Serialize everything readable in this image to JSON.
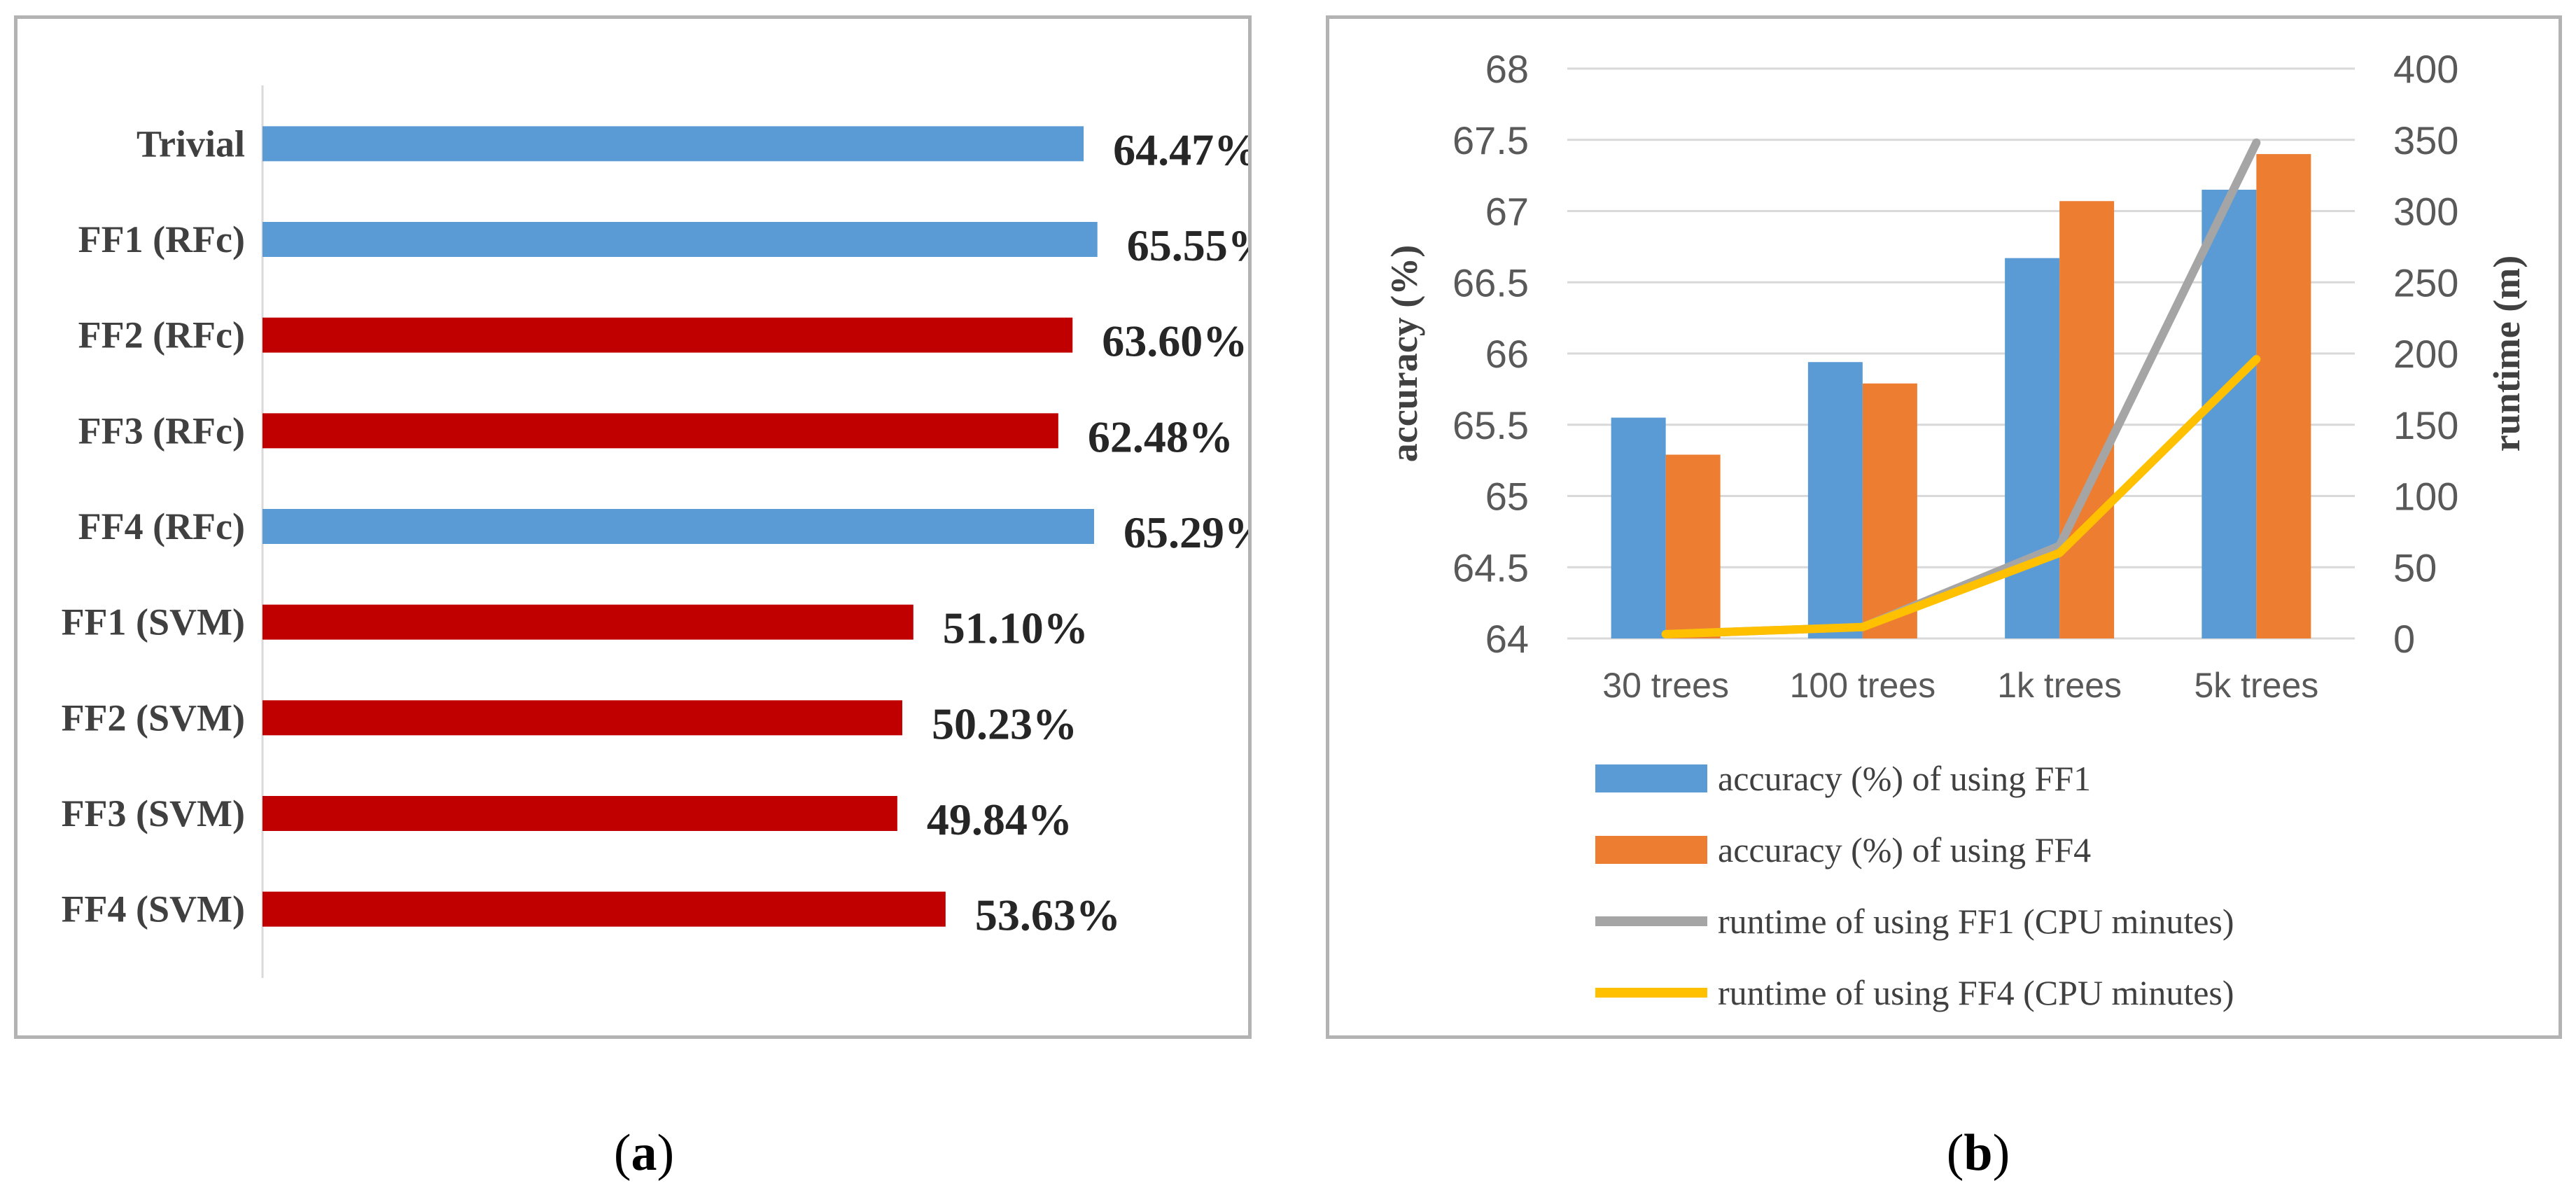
{
  "colors": {
    "blue": "#5b9bd5",
    "red": "#c00000",
    "orange": "#ed7d31",
    "gray": "#a5a5a5",
    "yellow": "#ffc000"
  },
  "panel_a": {
    "caption_paren_open": "(",
    "caption_letter": "a",
    "caption_paren_close": ")"
  },
  "panel_b": {
    "caption_paren_open": "(",
    "caption_letter": "b",
    "caption_paren_close": ")"
  },
  "chart_data": [
    {
      "type": "bar",
      "orientation": "horizontal",
      "categories": [
        "Trivial",
        "FF1 (RFc)",
        "FF2 (RFc)",
        "FF3 (RFc)",
        "FF4 (RFc)",
        "FF1 (SVM)",
        "FF2 (SVM)",
        "FF3 (SVM)",
        "FF4 (SVM)"
      ],
      "values": [
        64.47,
        65.55,
        63.6,
        62.48,
        65.29,
        51.1,
        50.23,
        49.84,
        53.63
      ],
      "labels": [
        "64.47%",
        "65.55%",
        "63.60%",
        "62.48%",
        "65.29%",
        "51.10%",
        "50.23%",
        "49.84%",
        "53.63%"
      ],
      "bar_colors": [
        "blue",
        "blue",
        "red",
        "red",
        "blue",
        "red",
        "red",
        "red",
        "red"
      ],
      "xlim": [
        0,
        66.5
      ],
      "title": "",
      "xlabel": "",
      "ylabel": ""
    },
    {
      "type": "bar",
      "combo": "bar-line, dual axis",
      "categories": [
        "30 trees",
        "100 trees",
        "1k trees",
        "5k trees"
      ],
      "series": [
        {
          "name": "accuracy (%) of using FF1",
          "type": "bar",
          "axis": "left",
          "color": "blue",
          "values": [
            65.55,
            65.94,
            66.67,
            67.15
          ]
        },
        {
          "name": "accuracy (%) of using FF4",
          "type": "bar",
          "axis": "left",
          "color": "orange",
          "values": [
            65.29,
            65.79,
            67.07,
            67.4
          ]
        },
        {
          "name": "runtime of using FF1 (CPU minutes)",
          "type": "line",
          "axis": "right",
          "color": "gray",
          "values": [
            3,
            8,
            65,
            348
          ]
        },
        {
          "name": "runtime of using FF4 (CPU minutes)",
          "type": "line",
          "axis": "right",
          "color": "yellow",
          "values": [
            3,
            8,
            60,
            196
          ]
        }
      ],
      "ylabel": "accuracy (%)",
      "ylim": [
        64,
        68
      ],
      "yticks": [
        "64",
        "64.5",
        "65",
        "65.5",
        "66",
        "66.5",
        "67",
        "67.5",
        "68"
      ],
      "y2label": "runtime (m)",
      "y2lim": [
        0,
        400
      ],
      "y2ticks": [
        "0",
        "50",
        "100",
        "150",
        "200",
        "250",
        "300",
        "350",
        "400"
      ],
      "gridlines": true,
      "legend": "bottom"
    }
  ]
}
